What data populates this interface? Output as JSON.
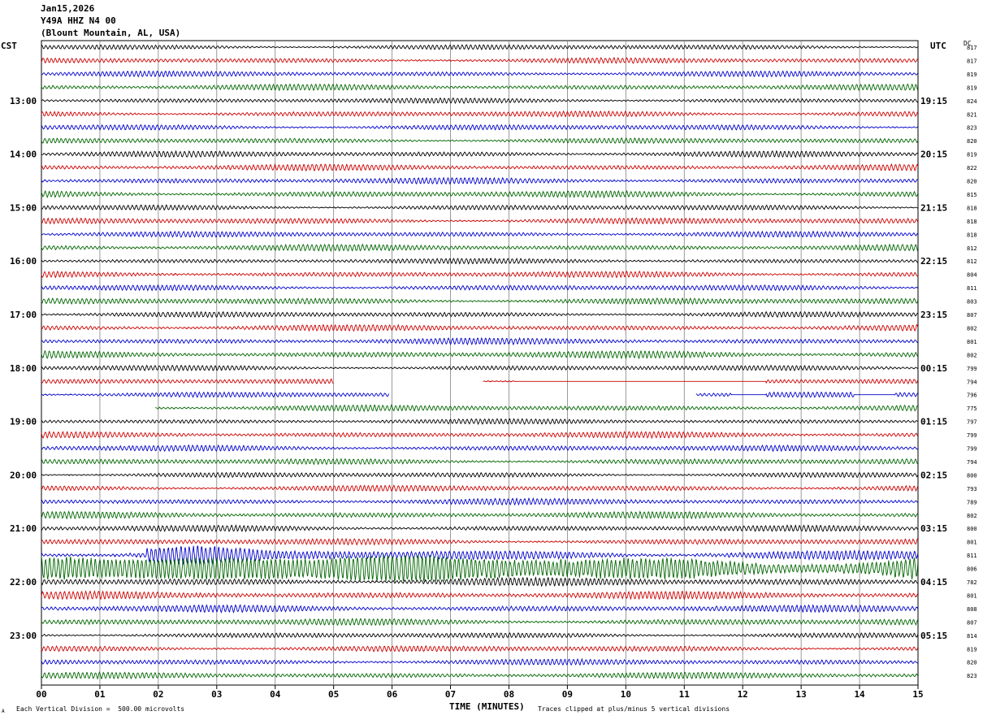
{
  "header": {
    "date": "Jan15,2026",
    "station": "Y49A HHZ N4 00",
    "location": "(Blount Mountain, AL, USA)"
  },
  "left_timezone": "CST",
  "right_timezone": "UTC",
  "dc_label": "DC",
  "footer": {
    "scale": "Each Vertical Division =  500.00 microvolts",
    "xlabel": "TIME (MINUTES)",
    "clip_note": "Traces clipped at plus/minus 5 vertical divisions",
    "corner_mark": "A"
  },
  "colors": {
    "trace_cycle": [
      "#000000",
      "#cc0000",
      "#0000cc",
      "#006600"
    ],
    "grid": "#808080"
  },
  "chart_data": {
    "type": "line",
    "title": "",
    "xlabel": "TIME (MINUTES)",
    "xlim": [
      0,
      15
    ],
    "x_ticks": [
      "00",
      "01",
      "02",
      "03",
      "04",
      "05",
      "06",
      "07",
      "08",
      "09",
      "10",
      "11",
      "12",
      "13",
      "14",
      "15"
    ],
    "rows_per_hour": 4,
    "left_hour_labels": [
      "13:00",
      "14:00",
      "15:00",
      "16:00",
      "17:00",
      "18:00",
      "19:00",
      "20:00",
      "21:00",
      "22:00",
      "23:00"
    ],
    "right_hour_labels": [
      "19:15",
      "20:15",
      "21:15",
      "22:15",
      "23:15",
      "00:15",
      "01:15",
      "02:15",
      "03:15",
      "04:15",
      "05:15"
    ],
    "dc_offsets": [
      817,
      817,
      819,
      819,
      824,
      821,
      823,
      820,
      819,
      822,
      820,
      815,
      818,
      818,
      818,
      812,
      812,
      804,
      811,
      803,
      807,
      802,
      801,
      802,
      799,
      794,
      796,
      775,
      797,
      799,
      799,
      794,
      800,
      793,
      789,
      802,
      800,
      801,
      811,
      806,
      782,
      801,
      808,
      807,
      814,
      819,
      820,
      823
    ],
    "row_amplitude": [
      2.2,
      2.3,
      2.3,
      2.5,
      2.2,
      2.5,
      2.4,
      2.3,
      2.5,
      2.6,
      2.6,
      2.8,
      2.3,
      2.6,
      2.4,
      2.7,
      2.2,
      2.6,
      2.4,
      2.7,
      2.3,
      2.6,
      2.6,
      3.0,
      2.3,
      2.2,
      2.3,
      2.6,
      2.2,
      2.6,
      2.5,
      2.5,
      2.2,
      2.6,
      2.6,
      2.8,
      2.6,
      2.6,
      4.2,
      12.0,
      3.4,
      3.2,
      3.0,
      2.8,
      2.3,
      2.6,
      2.5,
      2.6
    ],
    "data_gaps": [
      {
        "row": 25,
        "from_min": 5.0,
        "to_min": 7.55
      },
      {
        "row": 26,
        "from_min": 5.95,
        "to_min": 11.2
      },
      {
        "row": 27,
        "from_min": 0.0,
        "to_min": 1.95
      }
    ],
    "flat_segments": [
      {
        "row": 25,
        "from_min": 8.1,
        "to_min": 12.4
      },
      {
        "row": 26,
        "from_min": 11.8,
        "to_min": 12.4
      },
      {
        "row": 26,
        "from_min": 13.9,
        "to_min": 14.6
      }
    ],
    "events": [
      {
        "row": 38,
        "from_min": 1.8,
        "to_min": 6.0,
        "peak": 12,
        "label": ""
      },
      {
        "row": 39,
        "from_min": 0.0,
        "to_min": 15.0,
        "peak": 14,
        "label": ""
      }
    ]
  }
}
